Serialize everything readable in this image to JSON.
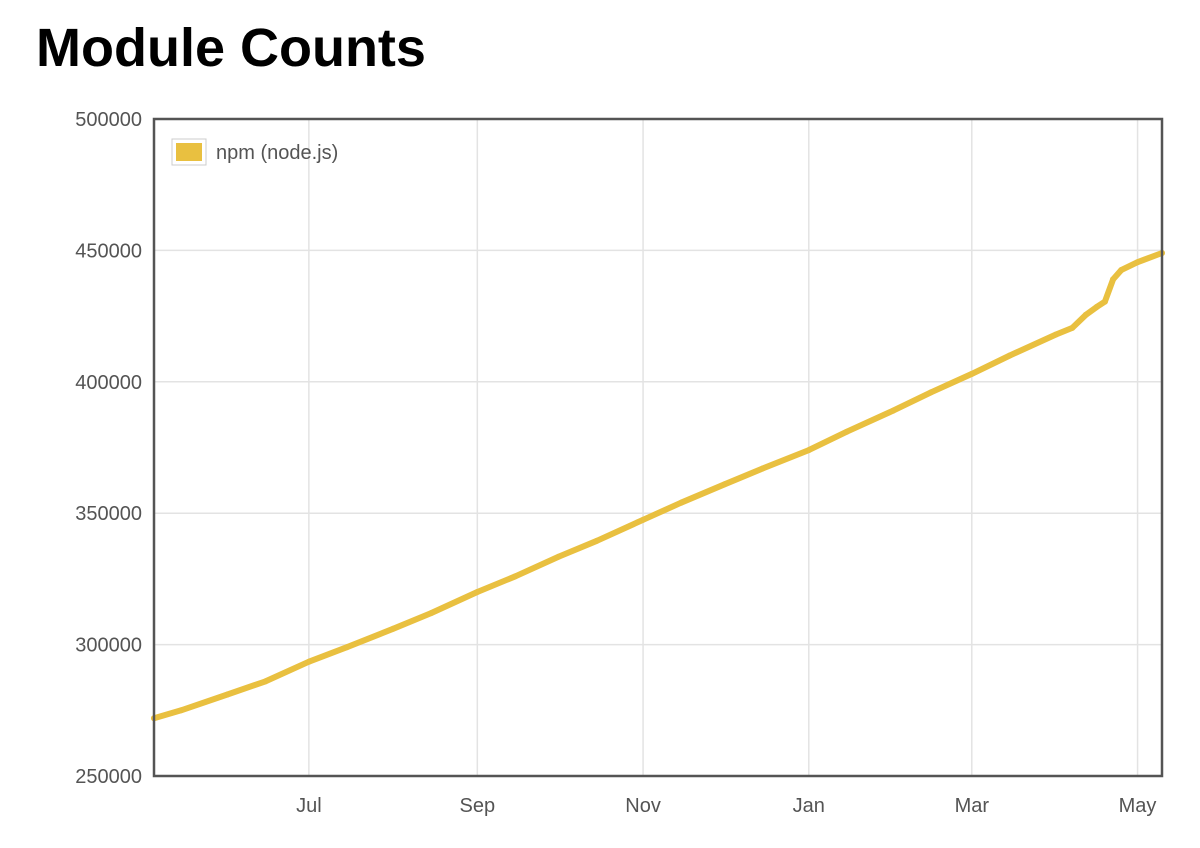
{
  "page": {
    "title": "Module Counts"
  },
  "chart_data": {
    "type": "line",
    "title": "",
    "xlabel": "",
    "ylabel": "",
    "x_axis": {
      "type": "date",
      "range": [
        "2015-05-05",
        "2016-05-10"
      ],
      "ticks": [
        {
          "date": "2015-07-01",
          "label": "Jul"
        },
        {
          "date": "2015-09-01",
          "label": "Sep"
        },
        {
          "date": "2015-11-01",
          "label": "Nov"
        },
        {
          "date": "2016-01-01",
          "label": "Jan"
        },
        {
          "date": "2016-03-01",
          "label": "Mar"
        },
        {
          "date": "2016-05-01",
          "label": "May"
        }
      ]
    },
    "y_axis": {
      "range": [
        250000,
        500000
      ],
      "ticks": [
        {
          "value": 250000,
          "label": "250000"
        },
        {
          "value": 300000,
          "label": "300000"
        },
        {
          "value": 350000,
          "label": "350000"
        },
        {
          "value": 400000,
          "label": "400000"
        },
        {
          "value": 450000,
          "label": "450000"
        },
        {
          "value": 500000,
          "label": "500000"
        }
      ]
    },
    "grid": true,
    "legend_position": "top-left",
    "series": [
      {
        "name": "npm (node.js)",
        "color": "#e9c040",
        "points": [
          {
            "x": "2015-05-05",
            "y": 272000
          },
          {
            "x": "2015-05-15",
            "y": 275000
          },
          {
            "x": "2015-06-01",
            "y": 281000
          },
          {
            "x": "2015-06-15",
            "y": 286000
          },
          {
            "x": "2015-07-01",
            "y": 293500
          },
          {
            "x": "2015-07-15",
            "y": 299000
          },
          {
            "x": "2015-08-01",
            "y": 306000
          },
          {
            "x": "2015-08-15",
            "y": 312000
          },
          {
            "x": "2015-09-01",
            "y": 320000
          },
          {
            "x": "2015-09-15",
            "y": 326000
          },
          {
            "x": "2015-10-01",
            "y": 333500
          },
          {
            "x": "2015-10-15",
            "y": 339500
          },
          {
            "x": "2015-11-01",
            "y": 347500
          },
          {
            "x": "2015-11-15",
            "y": 354000
          },
          {
            "x": "2015-12-01",
            "y": 361000
          },
          {
            "x": "2015-12-15",
            "y": 367000
          },
          {
            "x": "2016-01-01",
            "y": 374000
          },
          {
            "x": "2016-01-15",
            "y": 381000
          },
          {
            "x": "2016-02-01",
            "y": 389000
          },
          {
            "x": "2016-02-15",
            "y": 396000
          },
          {
            "x": "2016-03-01",
            "y": 403000
          },
          {
            "x": "2016-03-15",
            "y": 410000
          },
          {
            "x": "2016-04-01",
            "y": 418000
          },
          {
            "x": "2016-04-07",
            "y": 420500
          },
          {
            "x": "2016-04-12",
            "y": 425500
          },
          {
            "x": "2016-04-16",
            "y": 428500
          },
          {
            "x": "2016-04-19",
            "y": 430500
          },
          {
            "x": "2016-04-22",
            "y": 439000
          },
          {
            "x": "2016-04-25",
            "y": 442500
          },
          {
            "x": "2016-05-01",
            "y": 445500
          },
          {
            "x": "2016-05-10",
            "y": 449000
          }
        ]
      }
    ]
  }
}
